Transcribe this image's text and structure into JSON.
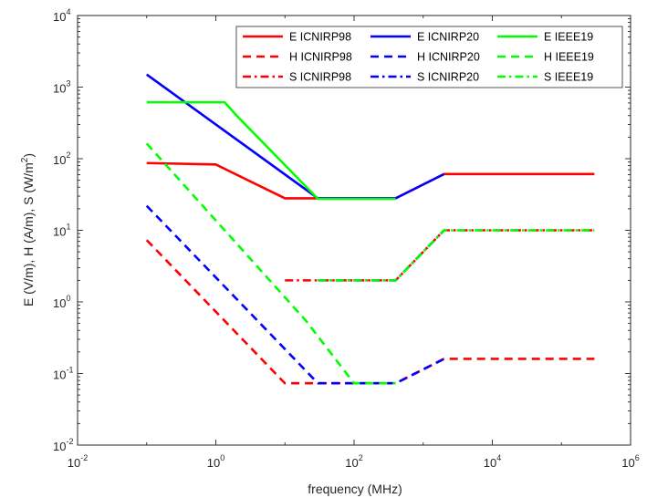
{
  "chart_data": {
    "type": "line",
    "xscale": "log",
    "yscale": "log",
    "xlim": [
      0.01,
      1000000
    ],
    "ylim": [
      0.01,
      10000
    ],
    "xlabel": "frequency (MHz)",
    "ylabel_parts": [
      "E (V/m), H (A/m), S (W/m",
      "2",
      ")"
    ],
    "grid": false,
    "legend_placement": "top-right",
    "xticks": [
      {
        "value": 0.01,
        "base": "10",
        "exp": "-2"
      },
      {
        "value": 1,
        "base": "10",
        "exp": "0"
      },
      {
        "value": 100,
        "base": "10",
        "exp": "2"
      },
      {
        "value": 10000,
        "base": "10",
        "exp": "4"
      },
      {
        "value": 1000000,
        "base": "10",
        "exp": "6"
      }
    ],
    "yticks": [
      {
        "value": 0.01,
        "base": "10",
        "exp": "-2"
      },
      {
        "value": 0.1,
        "base": "10",
        "exp": "-1"
      },
      {
        "value": 1,
        "base": "10",
        "exp": "0"
      },
      {
        "value": 10,
        "base": "10",
        "exp": "1"
      },
      {
        "value": 100,
        "base": "10",
        "exp": "2"
      },
      {
        "value": 1000,
        "base": "10",
        "exp": "3"
      },
      {
        "value": 10000,
        "base": "10",
        "exp": "4"
      }
    ],
    "series": [
      {
        "name": "E ICNIRP98",
        "color": "#ff0000",
        "dash": "solid",
        "points": [
          [
            0.1,
            87
          ],
          [
            1,
            83
          ],
          [
            10,
            28
          ],
          [
            400,
            28
          ],
          [
            2000,
            61
          ],
          [
            300000,
            61
          ]
        ]
      },
      {
        "name": "E ICNIRP20",
        "color": "#0000ff",
        "dash": "solid",
        "points": [
          [
            0.1,
            1500
          ],
          [
            30,
            28
          ],
          [
            400,
            28
          ],
          [
            2000,
            61
          ]
        ]
      },
      {
        "name": "E IEEE19",
        "color": "#00ff00",
        "dash": "solid",
        "points": [
          [
            0.1,
            614
          ],
          [
            1.34,
            614
          ],
          [
            2,
            400
          ],
          [
            30,
            27.5
          ],
          [
            400,
            27.5
          ]
        ]
      },
      {
        "name": "H ICNIRP98",
        "color": "#ff0000",
        "dash": "dash",
        "points": [
          [
            0.1,
            7.3
          ],
          [
            10,
            0.073
          ],
          [
            400,
            0.073
          ],
          [
            2000,
            0.16
          ],
          [
            300000,
            0.16
          ]
        ]
      },
      {
        "name": "H ICNIRP20",
        "color": "#0000ff",
        "dash": "dash",
        "points": [
          [
            0.1,
            22
          ],
          [
            30,
            0.073
          ],
          [
            400,
            0.073
          ],
          [
            2000,
            0.16
          ]
        ]
      },
      {
        "name": "H IEEE19",
        "color": "#00ff00",
        "dash": "dash",
        "points": [
          [
            0.1,
            163
          ],
          [
            20,
            0.55
          ],
          [
            100,
            0.073
          ],
          [
            400,
            0.073
          ]
        ]
      },
      {
        "name": "S ICNIRP98",
        "color": "#ff0000",
        "dash": "dashdot",
        "points": [
          [
            10,
            2
          ],
          [
            400,
            2
          ],
          [
            2000,
            10
          ],
          [
            300000,
            10
          ]
        ]
      },
      {
        "name": "S ICNIRP20",
        "color": "#0000ff",
        "dash": "dashdot",
        "points": [
          [
            30,
            2
          ],
          [
            400,
            2
          ],
          [
            2000,
            10
          ]
        ]
      },
      {
        "name": "S IEEE19",
        "color": "#00ff00",
        "dash": "dashdot",
        "points": [
          [
            30,
            2
          ],
          [
            400,
            2
          ],
          [
            2000,
            10
          ],
          [
            300000,
            10
          ]
        ]
      }
    ]
  }
}
